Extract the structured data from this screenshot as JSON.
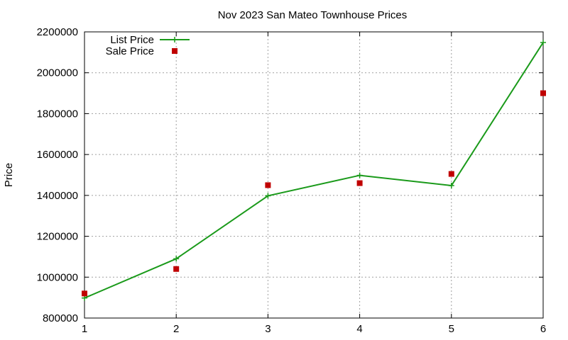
{
  "chart_data": {
    "type": "line",
    "title": "Nov 2023 San Mateo Townhouse Prices",
    "xlabel": "",
    "ylabel": "Price",
    "xlim": [
      1,
      6
    ],
    "ylim": [
      800000,
      2200000
    ],
    "x_ticks": [
      "1",
      "2",
      "3",
      "4",
      "5",
      "6"
    ],
    "y_ticks": [
      "800000",
      "1000000",
      "1200000",
      "1400000",
      "1600000",
      "1800000",
      "2000000",
      "2200000"
    ],
    "grid": true,
    "legend_position": "top-left",
    "x": [
      1,
      2,
      3,
      4,
      5,
      6
    ],
    "series": [
      {
        "name": "List Price",
        "style": "line-with-plus-markers",
        "color": "#1a9a1a",
        "values": [
          898000,
          1090000,
          1398000,
          1498000,
          1448000,
          2148000
        ]
      },
      {
        "name": "Sale Price",
        "style": "square-markers",
        "color": "#c00000",
        "values": [
          920000,
          1040000,
          1450000,
          1460000,
          1505000,
          1900000
        ]
      }
    ]
  }
}
